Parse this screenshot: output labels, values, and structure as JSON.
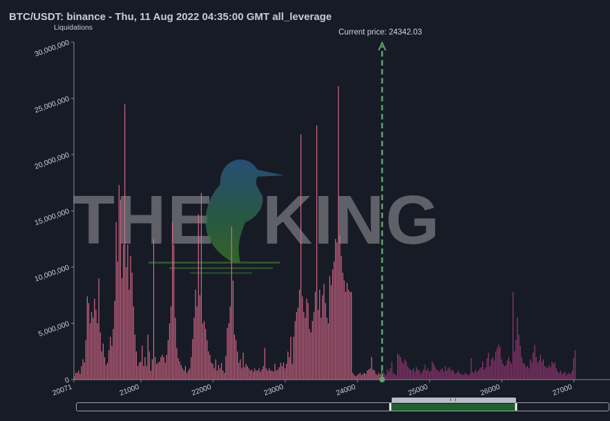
{
  "title": "BTC/USDT: binance - Thu, 11 Aug 2022 04:35:00 GMT all_leverage",
  "watermark": {
    "text_left": "THE",
    "text_right": "KING"
  },
  "current_price_label": "Current price: 24342.03",
  "colors": {
    "background": "#171b26",
    "bars_below_price": "#e06c8c",
    "bars_above_price": "#a03a78",
    "price_line": "#5fa86a",
    "axis_text": "#c9ccd4"
  },
  "chart_data": {
    "type": "bar",
    "title": "BTC/USDT: binance - Thu, 11 Aug 2022 04:35:00 GMT all_leverage",
    "ylabel": "Liquidations",
    "xlabel": "",
    "xlim": [
      20071,
      27500
    ],
    "ylim": [
      0,
      30000000
    ],
    "grid": false,
    "current_price": 24342.03,
    "x_ticks": [
      "20071",
      "21000",
      "22000",
      "23000",
      "24000",
      "25000",
      "26000",
      "27000"
    ],
    "y_ticks": [
      "0",
      "5,000,000",
      "10,000,000",
      "15,000,000",
      "20,000,000",
      "25,000,000",
      "30,000,000"
    ],
    "bin_start": 20071,
    "bin_width": 20,
    "values": [
      300000,
      600000,
      600000,
      800000,
      500000,
      1200000,
      1800000,
      1500000,
      3500000,
      7400000,
      6800000,
      5000000,
      6000000,
      5500000,
      7200000,
      6200000,
      5000000,
      9000000,
      4200000,
      2500000,
      3200000,
      2000000,
      1300000,
      1500000,
      2600000,
      3800000,
      3000000,
      4500000,
      7000000,
      14000000,
      10500000,
      17300000,
      16000000,
      9000000,
      12000000,
      24500000,
      10000000,
      12000000,
      8000000,
      11000000,
      9500000,
      6500000,
      4000000,
      2500000,
      1200000,
      1500000,
      1600000,
      3000000,
      1200000,
      2000000,
      1200000,
      4000000,
      2500000,
      800000,
      1800000,
      12500000,
      2000000,
      1400000,
      1500000,
      1600000,
      2000000,
      2200000,
      2000000,
      1500000,
      2200000,
      3500000,
      5000000,
      6500000,
      14000000,
      12000000,
      5500000,
      2800000,
      1900000,
      1600000,
      1300000,
      1000000,
      800000,
      1200000,
      600000,
      800000,
      1000000,
      2000000,
      3600000,
      5500000,
      8000000,
      6500000,
      14700000,
      7500000,
      16600000,
      5000000,
      5200000,
      4500000,
      3500000,
      2500000,
      2200000,
      1500000,
      1400000,
      1000000,
      1800000,
      800000,
      1300000,
      1000000,
      1500000,
      800000,
      600000,
      2100000,
      4600000,
      5000000,
      6500000,
      13600000,
      8800000,
      4000000,
      3500000,
      2500000,
      1500000,
      1800000,
      1000000,
      2400000,
      1100000,
      1400000,
      1200000,
      1000000,
      800000,
      900000,
      700000,
      1000000,
      800000,
      800000,
      1000000,
      700000,
      900000,
      1200000,
      2800000,
      1000000,
      800000,
      1000000,
      800000,
      800000,
      700000,
      1400000,
      800000,
      900000,
      1100000,
      1500000,
      1200000,
      1500000,
      1000000,
      1400000,
      2500000,
      2000000,
      3800000,
      1400000,
      3800000,
      5200000,
      6000000,
      6400000,
      8000000,
      21800000,
      7400000,
      6000000,
      5500000,
      7200000,
      6800000,
      4500000,
      4200000,
      5200000,
      6000000,
      7800000,
      22600000,
      6200000,
      8000000,
      5500000,
      7500000,
      8500000,
      6800000,
      5500000,
      5000000,
      9200000,
      8400000,
      9800000,
      10500000,
      12500000,
      12200000,
      26100000,
      12800000,
      11000000,
      9500000,
      8800000,
      7800000,
      8600000,
      8000000,
      7800000,
      7800000,
      600000,
      400000,
      300000,
      400000,
      500000,
      600000,
      400000,
      500000,
      600000,
      500000,
      800000,
      900000,
      1000000,
      2000000,
      900000,
      800000,
      500000,
      400000,
      600000,
      500000,
      900000,
      700000,
      500000,
      400000,
      900000,
      700000,
      1000000,
      1600000,
      600000,
      500000,
      400000,
      2300000,
      2200000,
      2000000,
      1600000,
      1400000,
      1800000,
      1600000,
      1200000,
      1000000,
      900000,
      800000,
      1000000,
      700000,
      1100000,
      900000,
      800000,
      500000,
      700000,
      900000,
      1300000,
      800000,
      1000000,
      700000,
      800000,
      1600000,
      1400000,
      1100000,
      900000,
      800000,
      700000,
      900000,
      1000000,
      700000,
      1200000,
      800000,
      1000000,
      1100000,
      800000,
      900000,
      700000,
      500000,
      600000,
      800000,
      600000,
      500000,
      400000,
      500000,
      600000,
      500000,
      400000,
      500000,
      1900000,
      700000,
      600000,
      900000,
      700000,
      800000,
      1000000,
      1100000,
      1600000,
      900000,
      1100000,
      1900000,
      2400000,
      1200000,
      1800000,
      2000000,
      1700000,
      2500000,
      2800000,
      3100000,
      2900000,
      1800000,
      1400000,
      1200000,
      1300000,
      1700000,
      2000000,
      1600000,
      1400000,
      7800000,
      2500000,
      3500000,
      5500000,
      4000000,
      3000000,
      2000000,
      1500000,
      1400000,
      1100000,
      1200000,
      1000000,
      1800000,
      1500000,
      2400000,
      3100000,
      2000000,
      1500000,
      1700000,
      2200000,
      1600000,
      1800000,
      1200000,
      1100000,
      1000000,
      1300000,
      1100000,
      1600000,
      1400000,
      1500000,
      1000000,
      700000,
      600000,
      800000,
      500000,
      600000,
      700000,
      400000,
      500000,
      600000,
      500000,
      800000,
      1900000,
      2600000
    ]
  },
  "navigator": {
    "range_start_fraction": 0.59,
    "range_end_fraction": 0.83
  }
}
